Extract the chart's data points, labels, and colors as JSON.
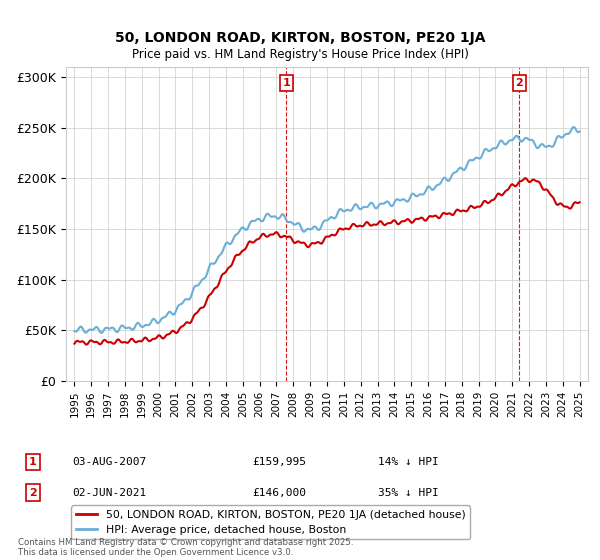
{
  "title": "50, LONDON ROAD, KIRTON, BOSTON, PE20 1JA",
  "subtitle": "Price paid vs. HM Land Registry's House Price Index (HPI)",
  "property_label": "50, LONDON ROAD, KIRTON, BOSTON, PE20 1JA (detached house)",
  "hpi_label": "HPI: Average price, detached house, Boston",
  "annotation1": {
    "num": "1",
    "date": "03-AUG-2007",
    "price": "£159,995",
    "hpi_diff": "14% ↓ HPI",
    "x_year": 2007.58
  },
  "annotation2": {
    "num": "2",
    "date": "02-JUN-2021",
    "price": "£146,000",
    "hpi_diff": "35% ↓ HPI",
    "x_year": 2021.42
  },
  "footnote": "Contains HM Land Registry data © Crown copyright and database right 2025.\nThis data is licensed under the Open Government Licence v3.0.",
  "ylim": [
    0,
    310000
  ],
  "yticks": [
    0,
    50000,
    100000,
    150000,
    200000,
    250000,
    300000
  ],
  "ytick_labels": [
    "£0",
    "£50K",
    "£100K",
    "£150K",
    "£200K",
    "£250K",
    "£300K"
  ],
  "xlim_start": 1994.5,
  "xlim_end": 2025.5,
  "property_color": "#cc0000",
  "hpi_color": "#6baed6",
  "background_color": "#ffffff",
  "grid_color": "#cccccc"
}
